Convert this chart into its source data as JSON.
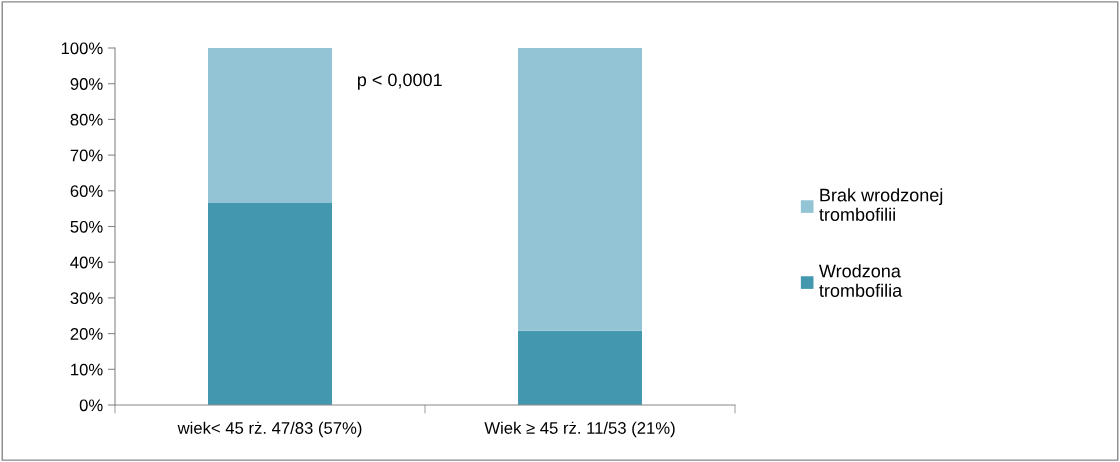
{
  "chart_data": {
    "type": "bar",
    "stacked": true,
    "categories": [
      "wiek< 45 rż. 47/83 (57%)",
      "Wiek ≥ 45 rż. 11/53 (21%)"
    ],
    "series": [
      {
        "name": "Wrodzona\ntrombofilia",
        "color": "#4398b0",
        "values": [
          56.6,
          20.8
        ]
      },
      {
        "name": "Brak wrodzonej\ntrombofilii",
        "color": "#93c4d6",
        "values": [
          43.4,
          79.2
        ]
      }
    ],
    "ylim": [
      0,
      100
    ],
    "yticks": [
      {
        "value": 0,
        "label": "0%"
      },
      {
        "value": 10,
        "label": "10%"
      },
      {
        "value": 20,
        "label": "20%"
      },
      {
        "value": 30,
        "label": "30%"
      },
      {
        "value": 40,
        "label": "40%"
      },
      {
        "value": 50,
        "label": "50%"
      },
      {
        "value": 60,
        "label": "60%"
      },
      {
        "value": 70,
        "label": "70%"
      },
      {
        "value": 80,
        "label": "80%"
      },
      {
        "value": 90,
        "label": "90%"
      },
      {
        "value": 100,
        "label": "100%"
      }
    ],
    "annotations": [
      "p < 0,0001"
    ],
    "grid": false,
    "legend": "right"
  }
}
